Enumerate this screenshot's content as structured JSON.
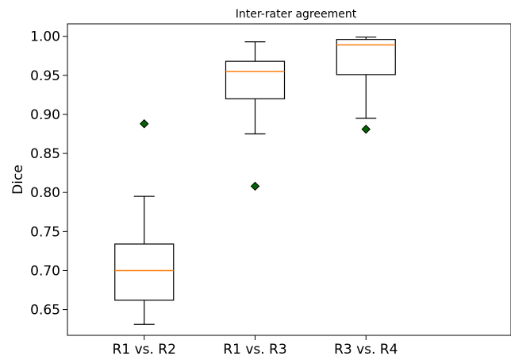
{
  "chart_data": {
    "type": "box",
    "title": "Inter-rater agreement",
    "xlabel": "",
    "ylabel": "Dice",
    "categories": [
      "R1 vs. R2",
      "R1 vs. R3",
      "R3 vs. R4"
    ],
    "ylim": [
      0.617,
      1.016
    ],
    "yticks": [
      0.65,
      0.7,
      0.75,
      0.8,
      0.85,
      0.9,
      0.95,
      1.0
    ],
    "ytick_labels": [
      "0.65",
      "0.70",
      "0.75",
      "0.80",
      "0.85",
      "0.90",
      "0.95",
      "1.00"
    ],
    "grid": false,
    "boxes": [
      {
        "category": "R1 vs. R2",
        "whislo": 0.631,
        "q1": 0.662,
        "med": 0.7,
        "q3": 0.734,
        "whishi": 0.795,
        "fliers": [
          0.888
        ]
      },
      {
        "category": "R1 vs. R3",
        "whislo": 0.875,
        "q1": 0.92,
        "med": 0.955,
        "q3": 0.968,
        "whishi": 0.993,
        "fliers": [
          0.808
        ]
      },
      {
        "category": "R3 vs. R4",
        "whislo": 0.895,
        "q1": 0.951,
        "med": 0.989,
        "q3": 0.996,
        "whishi": 0.999,
        "fliers": [
          0.881
        ]
      }
    ],
    "colors": {
      "box": "#000000",
      "median": "#ff7f0e",
      "flier_fill": "#006400",
      "flier_edge": "#000000"
    },
    "flier_marker": "diamond"
  }
}
